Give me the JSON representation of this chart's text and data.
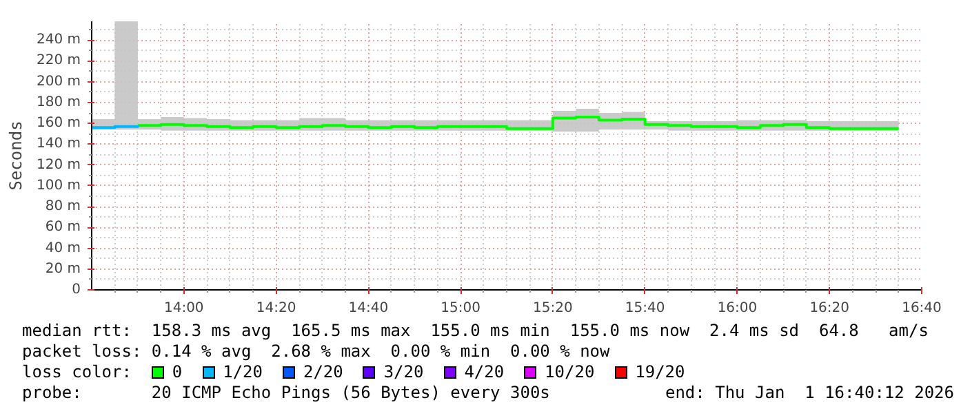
{
  "chart_data": {
    "type": "step",
    "ylabel": "Seconds",
    "x": [
      "2026-01-01T13:40",
      "2026-01-01T13:45",
      "2026-01-01T13:50",
      "2026-01-01T13:55",
      "2026-01-01T14:00",
      "2026-01-01T14:05",
      "2026-01-01T14:10",
      "2026-01-01T14:15",
      "2026-01-01T14:20",
      "2026-01-01T14:25",
      "2026-01-01T14:30",
      "2026-01-01T14:35",
      "2026-01-01T14:40",
      "2026-01-01T14:45",
      "2026-01-01T14:50",
      "2026-01-01T14:55",
      "2026-01-01T15:00",
      "2026-01-01T15:05",
      "2026-01-01T15:10",
      "2026-01-01T15:15",
      "2026-01-01T15:20",
      "2026-01-01T15:25",
      "2026-01-01T15:30",
      "2026-01-01T15:35",
      "2026-01-01T15:40",
      "2026-01-01T15:45",
      "2026-01-01T15:50",
      "2026-01-01T15:55",
      "2026-01-01T16:00",
      "2026-01-01T16:05",
      "2026-01-01T16:10",
      "2026-01-01T16:15",
      "2026-01-01T16:20",
      "2026-01-01T16:25",
      "2026-01-01T16:30",
      "2026-01-01T16:35"
    ],
    "series": [
      {
        "name": "0",
        "color": "#00ff00",
        "values": [
          null,
          null,
          158,
          159,
          158,
          157,
          156,
          157,
          156,
          157,
          158,
          157,
          156,
          157,
          156,
          157,
          157,
          157,
          155,
          155,
          165,
          166,
          163,
          164,
          159,
          158,
          157,
          157,
          156,
          158,
          159,
          156,
          155,
          155,
          155,
          155
        ],
        "lower": [
          null,
          null,
          154,
          153,
          153,
          153,
          153,
          153,
          153,
          153,
          153,
          153,
          153,
          153,
          153,
          153,
          153,
          153,
          153,
          153,
          152,
          152,
          154,
          154,
          154,
          153,
          153,
          153,
          153,
          153,
          153,
          153,
          153,
          153,
          153,
          153
        ],
        "upper": [
          null,
          null,
          164,
          166,
          165,
          164,
          163,
          163,
          163,
          165,
          165,
          163,
          163,
          163,
          163,
          163,
          163,
          163,
          163,
          163,
          172,
          174,
          170,
          171,
          162,
          162,
          162,
          162,
          163,
          163,
          163,
          162,
          162,
          162,
          162,
          162
        ]
      },
      {
        "name": "1/20",
        "color": "#00b8ff",
        "values": [
          156,
          157,
          158,
          null,
          null,
          null,
          null,
          null,
          null,
          null,
          null,
          null,
          null,
          null,
          null,
          null,
          null,
          null,
          null,
          null,
          null,
          null,
          null,
          null,
          null,
          null,
          null,
          null,
          null,
          null,
          null,
          null,
          null,
          null,
          null,
          null
        ],
        "lower": [
          154,
          154,
          154,
          null,
          null,
          null,
          null,
          null,
          null,
          null,
          null,
          null,
          null,
          null,
          null,
          null,
          null,
          null,
          null,
          null,
          null,
          null,
          null,
          null,
          null,
          null,
          null,
          null,
          null,
          null,
          null,
          null,
          null,
          null,
          null,
          null
        ],
        "upper": [
          164,
          258,
          164,
          null,
          null,
          null,
          null,
          null,
          null,
          null,
          null,
          null,
          null,
          null,
          null,
          null,
          null,
          null,
          null,
          null,
          null,
          null,
          null,
          null,
          null,
          null,
          null,
          null,
          null,
          null,
          null,
          null,
          null,
          null,
          null,
          null
        ]
      },
      {
        "name": "2/20",
        "color": "#0059ff",
        "values": [
          null,
          null,
          null,
          null,
          null,
          null,
          null,
          null,
          null,
          null,
          null,
          null,
          null,
          null,
          null,
          null,
          null,
          null,
          null,
          null,
          null,
          null,
          null,
          null,
          null,
          null,
          null,
          null,
          null,
          null,
          null,
          null,
          null,
          null,
          null,
          null
        ]
      },
      {
        "name": "3/20",
        "color": "#5e00ff",
        "values": [
          null,
          null,
          null,
          null,
          null,
          null,
          null,
          null,
          null,
          null,
          null,
          null,
          null,
          null,
          null,
          null,
          null,
          null,
          null,
          null,
          null,
          null,
          null,
          null,
          null,
          null,
          null,
          null,
          null,
          null,
          null,
          null,
          null,
          null,
          null,
          null
        ]
      },
      {
        "name": "4/20",
        "color": "#7e00ff",
        "values": [
          null,
          null,
          null,
          null,
          null,
          null,
          null,
          null,
          null,
          null,
          null,
          null,
          null,
          null,
          null,
          null,
          null,
          null,
          null,
          null,
          null,
          null,
          null,
          null,
          null,
          null,
          null,
          null,
          null,
          null,
          null,
          null,
          null,
          null,
          null,
          null
        ]
      },
      {
        "name": "10/20",
        "color": "#dd00ff",
        "values": [
          null,
          null,
          null,
          null,
          null,
          null,
          null,
          null,
          null,
          null,
          null,
          null,
          null,
          null,
          null,
          null,
          null,
          null,
          null,
          null,
          null,
          null,
          null,
          null,
          null,
          null,
          null,
          null,
          null,
          null,
          null,
          null,
          null,
          null,
          null,
          null
        ]
      },
      {
        "name": "19/20",
        "color": "#ff0000",
        "values": [
          null,
          null,
          null,
          null,
          null,
          null,
          null,
          null,
          null,
          null,
          null,
          null,
          null,
          null,
          null,
          null,
          null,
          null,
          null,
          null,
          null,
          null,
          null,
          null,
          null,
          null,
          null,
          null,
          null,
          null,
          null,
          null,
          null,
          null,
          null,
          null
        ]
      }
    ],
    "legend": "bottom",
    "legend_title": "loss color:",
    "grid": true,
    "xlim": [
      "2026-01-01T13:40",
      "2026-01-01T16:40"
    ],
    "xticks": [
      {
        "value": "2026-01-01T13:45",
        "label": null
      },
      {
        "value": "2026-01-01T13:50",
        "label": null
      },
      {
        "value": "2026-01-01T13:55",
        "label": null
      },
      {
        "value": "2026-01-01T14:00",
        "label": "14:00"
      },
      {
        "value": "2026-01-01T14:05",
        "label": null
      },
      {
        "value": "2026-01-01T14:10",
        "label": null
      },
      {
        "value": "2026-01-01T14:15",
        "label": null
      },
      {
        "value": "2026-01-01T14:20",
        "label": "14:20"
      },
      {
        "value": "2026-01-01T14:25",
        "label": null
      },
      {
        "value": "2026-01-01T14:30",
        "label": null
      },
      {
        "value": "2026-01-01T14:35",
        "label": null
      },
      {
        "value": "2026-01-01T14:40",
        "label": "14:40"
      },
      {
        "value": "2026-01-01T14:45",
        "label": null
      },
      {
        "value": "2026-01-01T14:50",
        "label": null
      },
      {
        "value": "2026-01-01T14:55",
        "label": null
      },
      {
        "value": "2026-01-01T15:00",
        "label": "15:00"
      },
      {
        "value": "2026-01-01T15:05",
        "label": null
      },
      {
        "value": "2026-01-01T15:10",
        "label": null
      },
      {
        "value": "2026-01-01T15:15",
        "label": null
      },
      {
        "value": "2026-01-01T15:20",
        "label": "15:20"
      },
      {
        "value": "2026-01-01T15:25",
        "label": null
      },
      {
        "value": "2026-01-01T15:30",
        "label": null
      },
      {
        "value": "2026-01-01T15:35",
        "label": null
      },
      {
        "value": "2026-01-01T15:40",
        "label": "15:40"
      },
      {
        "value": "2026-01-01T15:45",
        "label": null
      },
      {
        "value": "2026-01-01T15:50",
        "label": null
      },
      {
        "value": "2026-01-01T15:55",
        "label": null
      },
      {
        "value": "2026-01-01T16:00",
        "label": "16:00"
      },
      {
        "value": "2026-01-01T16:05",
        "label": null
      },
      {
        "value": "2026-01-01T16:10",
        "label": null
      },
      {
        "value": "2026-01-01T16:15",
        "label": null
      },
      {
        "value": "2026-01-01T16:20",
        "label": "16:20"
      },
      {
        "value": "2026-01-01T16:25",
        "label": null
      },
      {
        "value": "2026-01-01T16:30",
        "label": null
      },
      {
        "value": "2026-01-01T16:35",
        "label": null
      },
      {
        "value": "2026-01-01T16:40",
        "label": "16:40"
      }
    ],
    "ylim": [
      0,
      258
    ],
    "yticks": [
      0,
      {
        "value": 10,
        "label": null
      },
      {
        "value": 20,
        "label": "20 m"
      },
      {
        "value": 30,
        "label": null
      },
      {
        "value": 40,
        "label": "40 m"
      },
      {
        "value": 50,
        "label": null
      },
      {
        "value": 60,
        "label": "60 m"
      },
      {
        "value": 70,
        "label": null
      },
      {
        "value": 80,
        "label": "80 m"
      },
      {
        "value": 90,
        "label": null
      },
      {
        "value": 100,
        "label": "100 m"
      },
      {
        "value": 110,
        "label": null
      },
      {
        "value": 120,
        "label": "120 m"
      },
      {
        "value": 130,
        "label": null
      },
      {
        "value": 140,
        "label": "140 m"
      },
      {
        "value": 150,
        "label": null
      },
      {
        "value": 160,
        "label": "160 m"
      },
      {
        "value": 170,
        "label": null
      },
      {
        "value": 180,
        "label": "180 m"
      },
      {
        "value": 190,
        "label": null
      },
      {
        "value": 200,
        "label": "200 m"
      },
      {
        "value": 210,
        "label": null
      },
      {
        "value": 220,
        "label": "220 m"
      },
      {
        "value": 230,
        "label": null
      },
      {
        "value": 240,
        "label": "240 m"
      },
      {
        "value": 250,
        "label": null
      }
    ],
    "annotations": [
      "median rtt:  158.3 ms avg  165.5 ms max  155.0 ms min  155.0 ms now  2.4 ms sd  64.8   am/s",
      "packet loss: 0.14 % avg  2.68 % max  0.00 % min  0.00 % now",
      "probe:       20 ICMP Echo Pings (56 Bytes) every 300s",
      "end: Thu Jan  1 16:40:12 2026"
    ]
  }
}
